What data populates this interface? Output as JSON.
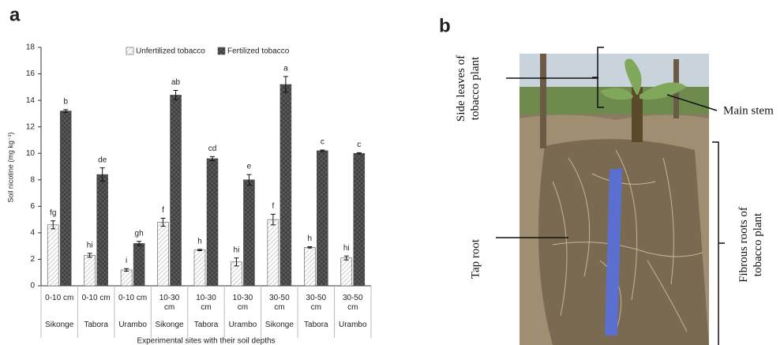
{
  "chart_data": {
    "type": "bar",
    "panel_label": "a",
    "y_label": "Soil nicotine (mg kg⁻¹)",
    "x_label": "Experimental sites with their soil depths",
    "categories": [
      "0-10 cm",
      "0-10 cm",
      "0-10 cm",
      "10-30 cm",
      "10-30 cm",
      "10-30 cm",
      "30-50 cm",
      "30-50 cm",
      "30-50 cm"
    ],
    "sites": [
      "Sikonge",
      "Tabora",
      "Urambo",
      "Sikonge",
      "Tabora",
      "Urambo",
      "Sikonge",
      "Tabora",
      "Urambo"
    ],
    "series": [
      {
        "name": "Unfertilized tobacco",
        "color": "#bfbfbf",
        "values": [
          4.6,
          2.3,
          1.2,
          4.8,
          2.7,
          1.8,
          5.0,
          2.9,
          2.1
        ],
        "errors": [
          0.3,
          0.15,
          0.1,
          0.3,
          0.05,
          0.3,
          0.4,
          0.05,
          0.15
        ],
        "letters": [
          "fg",
          "hi",
          "i",
          "f",
          "h",
          "hi",
          "f",
          "h",
          "hi"
        ]
      },
      {
        "name": "Fertilized tobacco",
        "color": "#595959",
        "values": [
          13.2,
          8.4,
          3.2,
          14.4,
          9.6,
          8.0,
          15.2,
          10.2,
          10.0
        ],
        "errors": [
          0.1,
          0.5,
          0.15,
          0.35,
          0.15,
          0.4,
          0.6,
          0.05,
          0.05
        ],
        "letters": [
          "b",
          "de",
          "gh",
          "ab",
          "cd",
          "e",
          "a",
          "c",
          "c"
        ]
      }
    ],
    "ylim": [
      0,
      18
    ],
    "yticks": [
      0,
      2,
      4,
      6,
      8,
      10,
      12,
      14,
      16,
      18
    ]
  },
  "photo": {
    "panel_label": "b",
    "labels": [
      "Side leaves of tobacco plant",
      "Main stem",
      "Tap root",
      "Fibrous roots of tobacco plant"
    ]
  }
}
